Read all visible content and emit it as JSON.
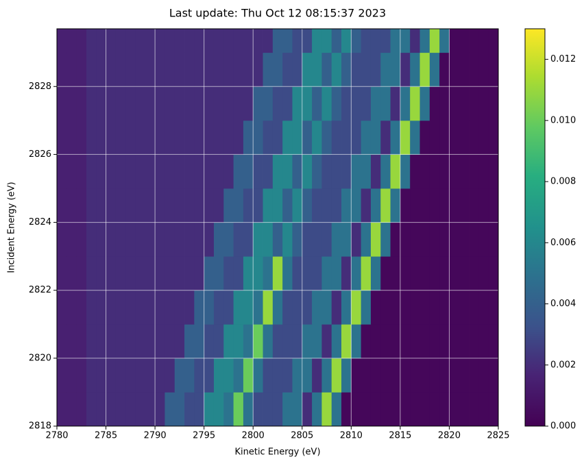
{
  "chart_data": {
    "type": "heatmap",
    "title": "Last update: Thu Oct 12 08:15:37 2023",
    "xlabel": "Kinetic Energy (eV)",
    "ylabel": "Incident Energy (eV)",
    "colormap": "viridis",
    "grid": true,
    "xlim": [
      2780,
      2825
    ],
    "ylim": [
      2818,
      2829.7
    ],
    "zlim": [
      0,
      0.013
    ],
    "xticks": [
      2780,
      2785,
      2790,
      2795,
      2800,
      2805,
      2810,
      2815,
      2820,
      2825
    ],
    "yticks": [
      2818,
      2820,
      2822,
      2824,
      2826,
      2828
    ],
    "zticks": [
      {
        "value": 0,
        "label": "0.000"
      },
      {
        "value": 0.002,
        "label": "0.002"
      },
      {
        "value": 0.004,
        "label": "0.004"
      },
      {
        "value": 0.006,
        "label": "0.006"
      },
      {
        "value": 0.008,
        "label": "0.008"
      },
      {
        "value": 0.01,
        "label": "0.010"
      },
      {
        "value": 0.012,
        "label": "0.012"
      }
    ],
    "xbins": [
      2780,
      2781,
      2782,
      2783,
      2784,
      2785,
      2786,
      2787,
      2788,
      2789,
      2790,
      2791,
      2792,
      2793,
      2794,
      2795,
      2796,
      2797,
      2798,
      2799,
      2800,
      2801,
      2802,
      2803,
      2804,
      2805,
      2806,
      2807,
      2808,
      2809,
      2810,
      2811,
      2812,
      2813,
      2814,
      2815,
      2816,
      2817,
      2818,
      2819,
      2820,
      2821,
      2822,
      2823,
      2824,
      2825
    ],
    "ybins": [
      2818,
      2819,
      2820,
      2821,
      2822,
      2823,
      2824,
      2825,
      2826,
      2827,
      2828,
      2829,
      2829.7
    ],
    "z": [
      [
        0.0015,
        0.0015,
        0.0015,
        0.002,
        0.002,
        0.002,
        0.002,
        0.002,
        0.002,
        0.002,
        0.002,
        0.004,
        0.004,
        0.003,
        0.003,
        0.006,
        0.006,
        0.005,
        0.01,
        0.005,
        0.003,
        0.003,
        0.003,
        0.005,
        0.005,
        0.002,
        0.005,
        0.011,
        0.005,
        0.0003,
        0.0003,
        0.0003,
        0.0003,
        0.0003,
        0.0003,
        0.0003,
        0.0003,
        0.0003,
        0.0003,
        0.0003,
        0.0003,
        0.0003,
        0.0003,
        0.0003,
        0.0003
      ],
      [
        0.0015,
        0.0015,
        0.0015,
        0.002,
        0.002,
        0.002,
        0.002,
        0.002,
        0.002,
        0.002,
        0.002,
        0.002,
        0.004,
        0.004,
        0.003,
        0.003,
        0.006,
        0.006,
        0.005,
        0.01,
        0.005,
        0.003,
        0.003,
        0.003,
        0.005,
        0.005,
        0.002,
        0.005,
        0.011,
        0.005,
        0.0003,
        0.0003,
        0.0003,
        0.0003,
        0.0003,
        0.0003,
        0.0003,
        0.0003,
        0.0003,
        0.0003,
        0.0003,
        0.0003,
        0.0003,
        0.0003,
        0.0003
      ],
      [
        0.0015,
        0.0015,
        0.0015,
        0.002,
        0.002,
        0.002,
        0.002,
        0.002,
        0.002,
        0.002,
        0.002,
        0.002,
        0.002,
        0.004,
        0.004,
        0.003,
        0.003,
        0.006,
        0.006,
        0.005,
        0.01,
        0.005,
        0.003,
        0.003,
        0.003,
        0.005,
        0.005,
        0.002,
        0.005,
        0.011,
        0.005,
        0.0003,
        0.0003,
        0.0003,
        0.0003,
        0.0003,
        0.0003,
        0.0003,
        0.0003,
        0.0003,
        0.0003,
        0.0003,
        0.0003,
        0.0003,
        0.0003
      ],
      [
        0.0015,
        0.0015,
        0.0015,
        0.002,
        0.002,
        0.002,
        0.002,
        0.002,
        0.002,
        0.002,
        0.002,
        0.002,
        0.002,
        0.002,
        0.004,
        0.004,
        0.003,
        0.003,
        0.006,
        0.006,
        0.005,
        0.011,
        0.005,
        0.003,
        0.003,
        0.003,
        0.005,
        0.005,
        0.002,
        0.005,
        0.011,
        0.005,
        0.0003,
        0.0003,
        0.0003,
        0.0003,
        0.0003,
        0.0003,
        0.0003,
        0.0003,
        0.0003,
        0.0003,
        0.0003,
        0.0003,
        0.0003
      ],
      [
        0.0015,
        0.0015,
        0.0015,
        0.002,
        0.002,
        0.002,
        0.002,
        0.002,
        0.002,
        0.002,
        0.002,
        0.002,
        0.002,
        0.002,
        0.002,
        0.004,
        0.004,
        0.003,
        0.003,
        0.006,
        0.006,
        0.005,
        0.011,
        0.005,
        0.003,
        0.003,
        0.003,
        0.005,
        0.005,
        0.002,
        0.005,
        0.011,
        0.005,
        0.0003,
        0.0003,
        0.0003,
        0.0003,
        0.0003,
        0.0003,
        0.0003,
        0.0003,
        0.0003,
        0.0003,
        0.0003,
        0.0003
      ],
      [
        0.0015,
        0.0015,
        0.0015,
        0.002,
        0.002,
        0.002,
        0.002,
        0.002,
        0.002,
        0.002,
        0.002,
        0.002,
        0.002,
        0.002,
        0.002,
        0.002,
        0.004,
        0.004,
        0.003,
        0.003,
        0.006,
        0.006,
        0.004,
        0.006,
        0.004,
        0.003,
        0.003,
        0.003,
        0.005,
        0.005,
        0.002,
        0.005,
        0.011,
        0.005,
        0.0003,
        0.0003,
        0.0003,
        0.0003,
        0.0003,
        0.0003,
        0.0003,
        0.0003,
        0.0003,
        0.0003,
        0.0003
      ],
      [
        0.0015,
        0.0015,
        0.0015,
        0.002,
        0.002,
        0.002,
        0.002,
        0.002,
        0.002,
        0.002,
        0.002,
        0.002,
        0.002,
        0.002,
        0.002,
        0.002,
        0.002,
        0.004,
        0.004,
        0.003,
        0.003,
        0.006,
        0.006,
        0.004,
        0.006,
        0.004,
        0.003,
        0.003,
        0.003,
        0.005,
        0.005,
        0.002,
        0.005,
        0.011,
        0.005,
        0.0003,
        0.0003,
        0.0003,
        0.0003,
        0.0003,
        0.0003,
        0.0003,
        0.0003,
        0.0003,
        0.0003
      ],
      [
        0.0015,
        0.0015,
        0.0015,
        0.002,
        0.002,
        0.002,
        0.002,
        0.002,
        0.002,
        0.002,
        0.002,
        0.002,
        0.002,
        0.002,
        0.002,
        0.002,
        0.002,
        0.002,
        0.004,
        0.004,
        0.003,
        0.003,
        0.006,
        0.006,
        0.004,
        0.006,
        0.004,
        0.003,
        0.003,
        0.003,
        0.005,
        0.005,
        0.002,
        0.005,
        0.011,
        0.005,
        0.0003,
        0.0003,
        0.0003,
        0.0003,
        0.0003,
        0.0003,
        0.0003,
        0.0003,
        0.0003
      ],
      [
        0.0015,
        0.0015,
        0.0015,
        0.002,
        0.002,
        0.002,
        0.002,
        0.002,
        0.002,
        0.002,
        0.002,
        0.002,
        0.002,
        0.002,
        0.002,
        0.002,
        0.002,
        0.002,
        0.002,
        0.004,
        0.004,
        0.003,
        0.003,
        0.006,
        0.006,
        0.004,
        0.006,
        0.004,
        0.003,
        0.003,
        0.003,
        0.005,
        0.005,
        0.002,
        0.005,
        0.011,
        0.005,
        0.0003,
        0.0003,
        0.0003,
        0.0003,
        0.0003,
        0.0003,
        0.0003,
        0.0003
      ],
      [
        0.0015,
        0.0015,
        0.0015,
        0.002,
        0.002,
        0.002,
        0.002,
        0.002,
        0.002,
        0.002,
        0.002,
        0.002,
        0.002,
        0.002,
        0.002,
        0.002,
        0.002,
        0.002,
        0.002,
        0.002,
        0.004,
        0.004,
        0.003,
        0.003,
        0.006,
        0.006,
        0.004,
        0.006,
        0.004,
        0.003,
        0.003,
        0.003,
        0.005,
        0.005,
        0.002,
        0.005,
        0.011,
        0.005,
        0.0003,
        0.0003,
        0.0003,
        0.0003,
        0.0003,
        0.0003,
        0.0003
      ],
      [
        0.0015,
        0.0015,
        0.0015,
        0.002,
        0.002,
        0.002,
        0.002,
        0.002,
        0.002,
        0.002,
        0.002,
        0.002,
        0.002,
        0.002,
        0.002,
        0.002,
        0.002,
        0.002,
        0.002,
        0.002,
        0.002,
        0.004,
        0.004,
        0.003,
        0.003,
        0.006,
        0.006,
        0.004,
        0.006,
        0.004,
        0.003,
        0.003,
        0.003,
        0.005,
        0.005,
        0.002,
        0.005,
        0.011,
        0.005,
        0.0003,
        0.0003,
        0.0003,
        0.0003,
        0.0003,
        0.0003
      ],
      [
        0.0015,
        0.0015,
        0.0015,
        0.002,
        0.002,
        0.002,
        0.002,
        0.002,
        0.002,
        0.002,
        0.002,
        0.002,
        0.002,
        0.002,
        0.002,
        0.002,
        0.002,
        0.002,
        0.002,
        0.002,
        0.002,
        0.002,
        0.004,
        0.004,
        0.003,
        0.003,
        0.006,
        0.006,
        0.004,
        0.006,
        0.004,
        0.003,
        0.003,
        0.003,
        0.005,
        0.005,
        0.002,
        0.005,
        0.011,
        0.005,
        0.0003,
        0.0003,
        0.0003,
        0.0003,
        0.0003
      ]
    ]
  }
}
